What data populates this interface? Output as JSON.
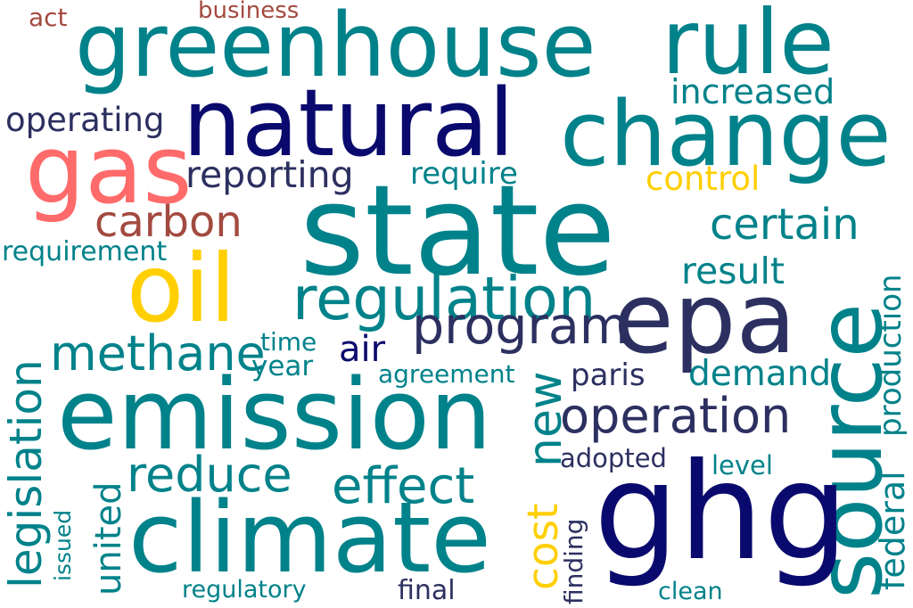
{
  "colors": {
    "teal": "#00828a",
    "navy": "#0a0a6e",
    "slate": "#2c3060",
    "coral": "#ff6b6b",
    "gold": "#ffcf00",
    "brown": "#a34a40"
  },
  "words": {
    "act": "act",
    "business": "business",
    "greenhouse": "greenhouse",
    "rule": "rule",
    "increased": "increased",
    "operating": "operating",
    "natural": "natural",
    "change": "change",
    "gas": "gas",
    "reporting": "reporting",
    "require": "require",
    "control": "control",
    "carbon": "carbon",
    "state": "state",
    "certain": "certain",
    "requirement": "requirement",
    "oil": "oil",
    "result": "result",
    "regulation": "regulation",
    "source": "source",
    "program": "program",
    "epa": "epa",
    "methane": "methane",
    "air": "air",
    "time": "time",
    "year": "year",
    "production": "production",
    "legislation": "legislation",
    "agreement": "agreement",
    "paris": "paris",
    "demand": "demand",
    "emission": "emission",
    "new": "new",
    "operation": "operation",
    "federal": "federal",
    "adopted": "adopted",
    "level": "level",
    "reduce": "reduce",
    "effect": "effect",
    "united": "united",
    "issued": "issued",
    "cost": "cost",
    "climate": "climate",
    "ghg": "ghg",
    "finding": "finding",
    "regulatory": "regulatory",
    "final": "final",
    "clean": "clean"
  }
}
